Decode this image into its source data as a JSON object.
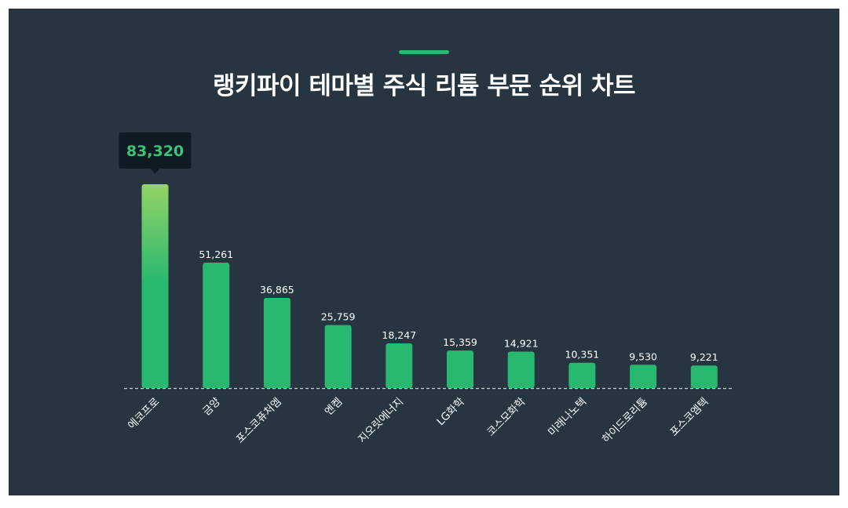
{
  "colors": {
    "background": "#263540",
    "accent": "#2ab872",
    "bar": "#29b870",
    "bar_top_gradient": "#94d466",
    "highlight_value": "#3dc27b",
    "tooltip_bg": "#0e1b22",
    "text": "#ffffff",
    "baseline": "#c7ccd0"
  },
  "chart_data": {
    "type": "bar",
    "title": "랭키파이 테마별 주식 리튬 부문 순위 차트",
    "categories": [
      "에코프로",
      "금양",
      "포스코퓨처엠",
      "엔켐",
      "지오릿에너지",
      "LG화학",
      "코스모화학",
      "미래나노텍",
      "하이드로리튬",
      "포스코엠텍"
    ],
    "values": [
      83320,
      51261,
      36865,
      25759,
      18247,
      15359,
      14921,
      10351,
      9530,
      9221
    ],
    "value_labels": [
      "83,320",
      "51,261",
      "36,865",
      "25,759",
      "18,247",
      "15,359",
      "14,921",
      "10,351",
      "9,530",
      "9,221"
    ],
    "highlight_index": 0,
    "ylim": [
      0,
      83320
    ],
    "grid": false,
    "legend": "none"
  }
}
